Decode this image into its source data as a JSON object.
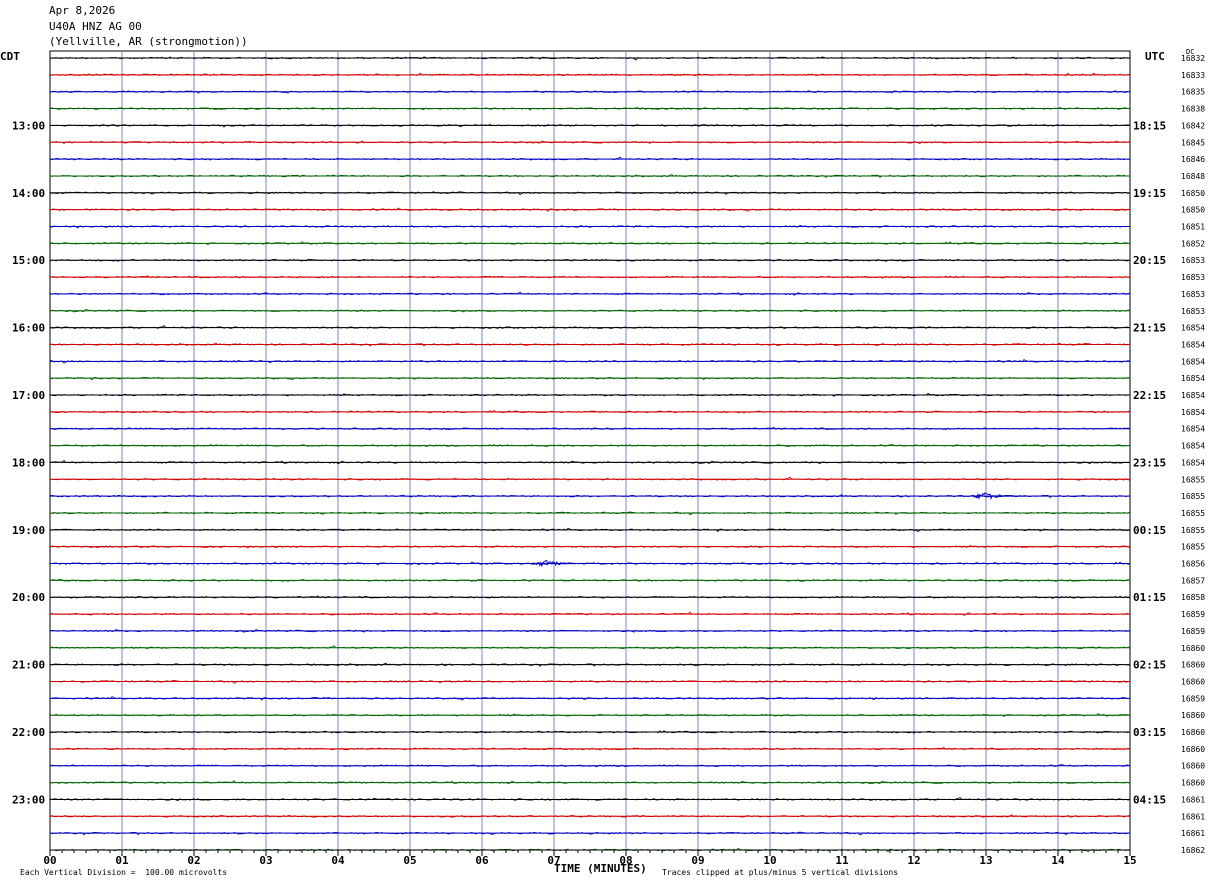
{
  "header": {
    "date": "Apr 8,2026",
    "station": "U40A HNZ AG 00",
    "location": "(Yellville, AR (strongmotion))"
  },
  "left_label": "CDT",
  "right_label": "UTC",
  "dc_label": "DC",
  "footer": {
    "scale_note": "Each Vertical Division =  100.00 microvolts",
    "clip_note": "Traces clipped at plus/minus 5 vertical divisions"
  },
  "colors": {
    "trace_cycle": [
      "#000000",
      "#d00000",
      "#0000c0",
      "#006400"
    ],
    "grid": "#8080c0"
  },
  "chart_data": {
    "type": "line",
    "xlabel": "TIME (MINUTES)",
    "x_ticks": [
      "00",
      "01",
      "02",
      "03",
      "04",
      "05",
      "06",
      "07",
      "08",
      "09",
      "10",
      "11",
      "12",
      "13",
      "14",
      "15"
    ],
    "xlim": [
      0,
      15
    ],
    "rows_per_hour": 4,
    "left_hour_labels": [
      "13:00",
      "14:00",
      "15:00",
      "16:00",
      "17:00",
      "18:00",
      "19:00",
      "20:00",
      "21:00",
      "22:00",
      "23:00"
    ],
    "right_hour_labels": [
      "18:15",
      "19:15",
      "20:15",
      "21:15",
      "22:15",
      "23:15",
      "00:15",
      "01:15",
      "02:15",
      "03:15",
      "04:15"
    ],
    "dc_offsets": [
      16832,
      16833,
      16835,
      16838,
      16842,
      16845,
      16846,
      16848,
      16850,
      16850,
      16851,
      16852,
      16853,
      16853,
      16853,
      16853,
      16854,
      16854,
      16854,
      16854,
      16854,
      16854,
      16854,
      16854,
      16854,
      16855,
      16855,
      16855,
      16855,
      16855,
      16856,
      16857,
      16858,
      16859,
      16859,
      16860,
      16860,
      16860,
      16859,
      16860,
      16860,
      16860,
      16860,
      16860,
      16861,
      16861,
      16861,
      16862
    ],
    "events": [
      {
        "row": 26,
        "minute": 13.0,
        "amplitude": 5
      },
      {
        "row": 30,
        "minute": 6.9,
        "amplitude": 4
      }
    ]
  }
}
